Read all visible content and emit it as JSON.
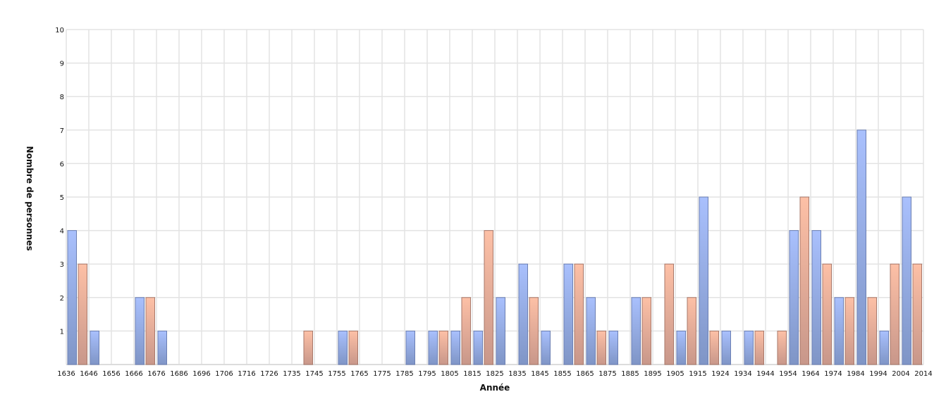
{
  "chart_data": {
    "type": "bar",
    "title": "",
    "xlabel": "Année",
    "ylabel": "Nombre de personnes",
    "ylim": [
      0,
      10
    ],
    "y_ticks": [
      1,
      2,
      3,
      4,
      5,
      6,
      7,
      8,
      9,
      10
    ],
    "grid": true,
    "legend": "none",
    "x_tick_labels": [
      "1636",
      "1646",
      "1656",
      "1666",
      "1676",
      "1686",
      "1696",
      "1706",
      "1716",
      "1726",
      "1735",
      "1745",
      "1755",
      "1765",
      "1775",
      "1785",
      "1795",
      "1805",
      "1815",
      "1825",
      "1835",
      "1845",
      "1855",
      "1865",
      "1875",
      "1885",
      "1895",
      "1905",
      "1915",
      "1924",
      "1934",
      "1944",
      "1954",
      "1964",
      "1974",
      "1984",
      "1994",
      "2004",
      "2014"
    ],
    "categories": [
      "1636",
      "1646",
      "1656",
      "1666",
      "1676",
      "1686",
      "1696",
      "1706",
      "1716",
      "1726",
      "1735",
      "1745",
      "1755",
      "1765",
      "1775",
      "1785",
      "1795",
      "1805",
      "1815",
      "1825",
      "1835",
      "1845",
      "1855",
      "1865",
      "1875",
      "1885",
      "1895",
      "1905",
      "1915",
      "1924",
      "1934",
      "1944",
      "1954",
      "1964",
      "1974",
      "1984",
      "1994",
      "2004"
    ],
    "series": [
      {
        "color": "#a6bdfa",
        "values": [
          4,
          1,
          0,
          2,
          1,
          0,
          0,
          0,
          0,
          0,
          0,
          0,
          1,
          0,
          0,
          1,
          1,
          1,
          1,
          2,
          3,
          1,
          3,
          2,
          1,
          2,
          0,
          1,
          5,
          1,
          1,
          0,
          4,
          4,
          2,
          7,
          1,
          5
        ]
      },
      {
        "color": "#fbbfa5",
        "values": [
          3,
          0,
          0,
          2,
          0,
          0,
          0,
          0,
          0,
          0,
          1,
          0,
          1,
          0,
          0,
          0,
          1,
          2,
          4,
          0,
          2,
          0,
          3,
          1,
          0,
          2,
          3,
          2,
          1,
          0,
          1,
          1,
          5,
          3,
          2,
          2,
          3,
          3
        ]
      }
    ]
  }
}
